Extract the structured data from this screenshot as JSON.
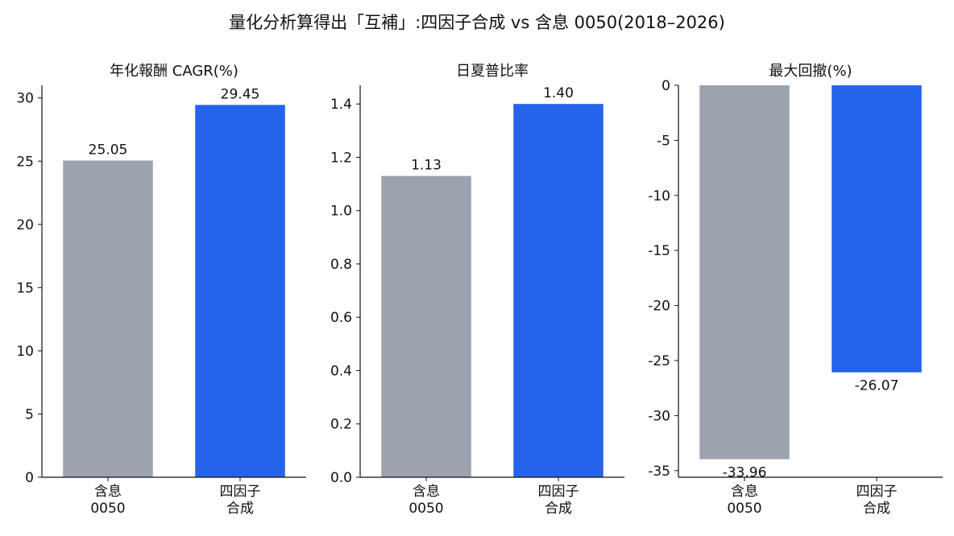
{
  "figure": {
    "title": "量化分析算得出「互補」:四因子合成 vs 含息 0050(2018–2026)"
  },
  "chart_data": [
    {
      "type": "bar",
      "title": "年化報酬 CAGR(%)",
      "categories": [
        "含息\n0050",
        "四因子\n合成"
      ],
      "values": [
        25.05,
        29.45
      ],
      "value_labels": [
        "25.05",
        "29.45"
      ],
      "colors": [
        "#9ca3af",
        "#2563eb"
      ],
      "ylim": [
        0,
        31
      ],
      "yticks": [
        0,
        5,
        10,
        15,
        20,
        25,
        30
      ],
      "ytick_labels": [
        "0",
        "5",
        "10",
        "15",
        "20",
        "25",
        "30"
      ],
      "xlabel": "",
      "ylabel": "",
      "grid": false
    },
    {
      "type": "bar",
      "title": "日夏普比率",
      "categories": [
        "含息\n0050",
        "四因子\n合成"
      ],
      "values": [
        1.13,
        1.4
      ],
      "value_labels": [
        "1.13",
        "1.40"
      ],
      "colors": [
        "#9ca3af",
        "#2563eb"
      ],
      "ylim": [
        0,
        1.47
      ],
      "yticks": [
        0,
        0.2,
        0.4,
        0.6,
        0.8,
        1.0,
        1.2,
        1.4
      ],
      "ytick_labels": [
        "0.0",
        "0.2",
        "0.4",
        "0.6",
        "0.8",
        "1.0",
        "1.2",
        "1.4"
      ],
      "xlabel": "",
      "ylabel": "",
      "grid": false
    },
    {
      "type": "bar",
      "title": "最大回撤(%)",
      "categories": [
        "含息\n0050",
        "四因子\n合成"
      ],
      "values": [
        -33.96,
        -26.07
      ],
      "value_labels": [
        "-33.96",
        "-26.07"
      ],
      "colors": [
        "#9ca3af",
        "#2563eb"
      ],
      "ylim": [
        -35.6,
        0
      ],
      "yticks": [
        0,
        -5,
        -10,
        -15,
        -20,
        -25,
        -30,
        -35
      ],
      "ytick_labels": [
        "0",
        "-5",
        "-10",
        "-15",
        "-20",
        "-25",
        "-30",
        "-35"
      ],
      "xlabel": "",
      "ylabel": "",
      "grid": false
    }
  ]
}
